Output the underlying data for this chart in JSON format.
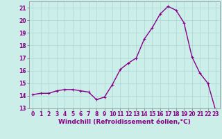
{
  "x": [
    0,
    1,
    2,
    3,
    4,
    5,
    6,
    7,
    8,
    9,
    10,
    11,
    12,
    13,
    14,
    15,
    16,
    17,
    18,
    19,
    20,
    21,
    22,
    23
  ],
  "y": [
    14.1,
    14.2,
    14.2,
    14.4,
    14.5,
    14.5,
    14.4,
    14.3,
    13.7,
    13.9,
    14.9,
    16.1,
    16.6,
    17.0,
    18.5,
    19.4,
    20.5,
    21.1,
    20.8,
    19.8,
    17.1,
    15.8,
    15.0,
    12.8
  ],
  "line_color": "#880088",
  "marker": "+",
  "marker_size": 3,
  "xlabel": "Windchill (Refroidissement éolien,°C)",
  "xlabel_fontsize": 6.5,
  "ylim": [
    13,
    21.5
  ],
  "xlim": [
    -0.5,
    23.5
  ],
  "yticks": [
    13,
    14,
    15,
    16,
    17,
    18,
    19,
    20,
    21
  ],
  "xticks": [
    0,
    1,
    2,
    3,
    4,
    5,
    6,
    7,
    8,
    9,
    10,
    11,
    12,
    13,
    14,
    15,
    16,
    17,
    18,
    19,
    20,
    21,
    22,
    23
  ],
  "grid_color": "#aad8d8",
  "background_color": "#cceee8",
  "tick_fontsize": 5.5,
  "line_width": 1.0,
  "marker_edge_width": 0.8
}
